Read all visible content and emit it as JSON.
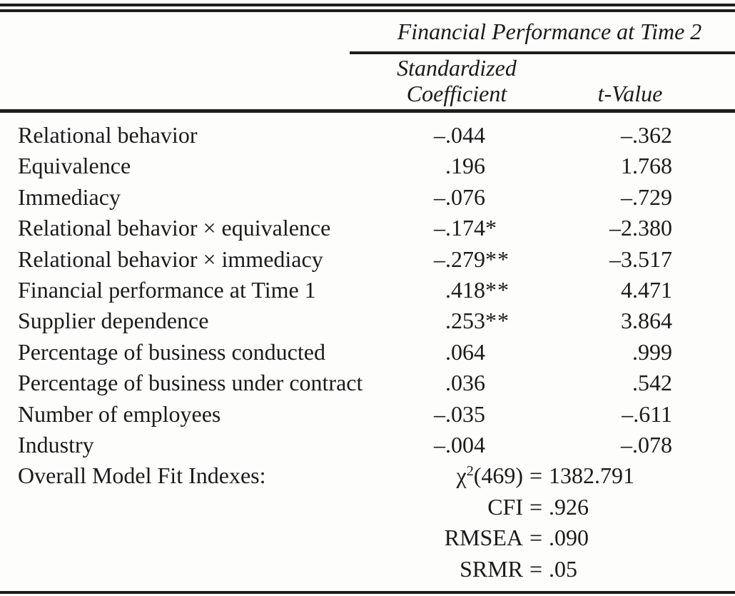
{
  "colors": {
    "ink": "#1b1b1b",
    "paper": "#fdfdfc"
  },
  "table": {
    "spanner_title": "Financial Performance at Time 2",
    "column_headers": {
      "coef_line1": "Standardized",
      "coef_line2": "Coefficient",
      "t": "t-Value"
    },
    "rows": [
      {
        "label": "Relational behavior",
        "coef": "–.044",
        "sig": "",
        "t": "–.362"
      },
      {
        "label": "Equivalence",
        "coef": ".196",
        "sig": "",
        "t": "1.768"
      },
      {
        "label": "Immediacy",
        "coef": "–.076",
        "sig": "",
        "t": "–.729"
      },
      {
        "label": "Relational behavior × equivalence",
        "coef": "–.174",
        "sig": "*",
        "t": "–2.380"
      },
      {
        "label": "Relational behavior × immediacy",
        "coef": "–.279",
        "sig": "**",
        "t": "–3.517"
      },
      {
        "label": "Financial performance at Time 1",
        "coef": ".418",
        "sig": "**",
        "t": "4.471"
      },
      {
        "label": "Supplier dependence",
        "coef": ".253",
        "sig": "**",
        "t": "3.864"
      },
      {
        "label": "Percentage of business conducted",
        "coef": ".064",
        "sig": "",
        "t": ".999"
      },
      {
        "label": "Percentage of business under contract",
        "coef": ".036",
        "sig": "",
        "t": ".542"
      },
      {
        "label": "Number of employees",
        "coef": "–.035",
        "sig": "",
        "t": "–.611"
      },
      {
        "label": "Industry",
        "coef": "–.004",
        "sig": "",
        "t": "–.078"
      }
    ],
    "fit": {
      "label": "Overall Model Fit Indexes:",
      "chi": {
        "base": "χ",
        "sup": "2",
        "args": "(469)",
        "eq": "=",
        "value": "1382.791"
      },
      "lines": [
        {
          "lhs": "CFI",
          "eq": "=",
          "value": ".926"
        },
        {
          "lhs": "RMSEA",
          "eq": "=",
          "value": ".090"
        },
        {
          "lhs": "SRMR",
          "eq": "=",
          "value": ".05"
        }
      ]
    }
  }
}
